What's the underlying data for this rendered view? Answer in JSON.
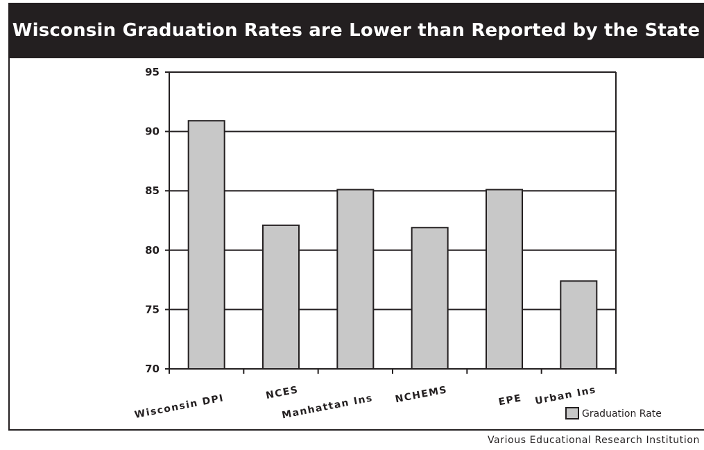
{
  "chart_data": {
    "type": "bar",
    "title": "Wisconsin Graduation Rates are Lower than Reported by the State",
    "categories": [
      "Wisconsin DPI",
      "NCES",
      "Manhattan Ins",
      "NCHEMS",
      "EPE",
      "Urban Ins"
    ],
    "series": [
      {
        "name": "Graduation Rate",
        "values": [
          90.9,
          82.1,
          85.1,
          81.9,
          85.1,
          77.4
        ]
      }
    ],
    "ylim": [
      70,
      95
    ],
    "yticks": [
      "70",
      "75",
      "80",
      "85",
      "90",
      "95"
    ],
    "grid": "horizontal",
    "legend": "bottom-right",
    "xlabel": "",
    "ylabel": "",
    "source_note": "Various Educational Research Institution",
    "colors": {
      "bar_fill": "#c8c8c8",
      "ink": "#231f20",
      "title_bg": "#231f20",
      "title_fg": "#ffffff"
    }
  }
}
